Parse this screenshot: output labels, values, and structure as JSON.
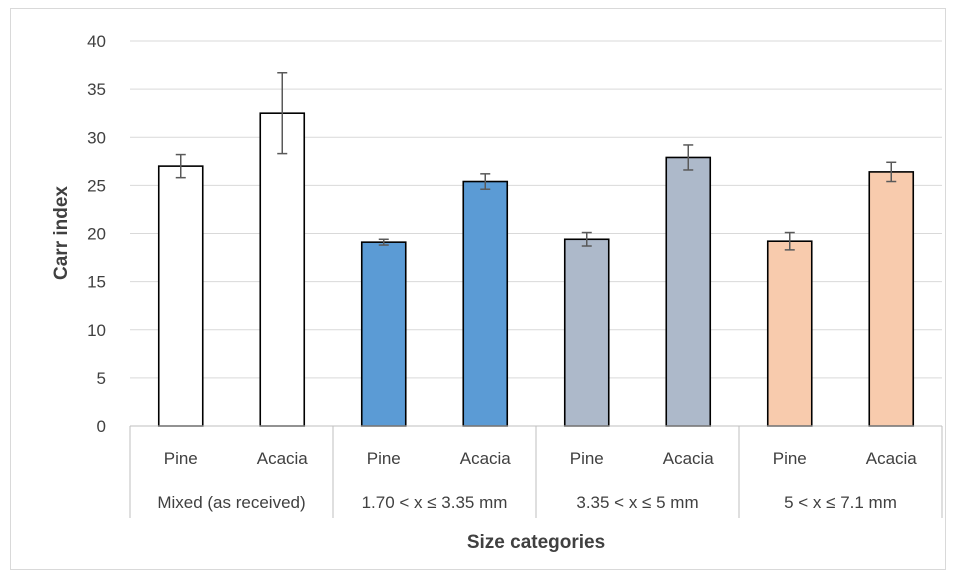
{
  "chart_data": {
    "type": "bar",
    "title": "",
    "xlabel": "Size categories",
    "ylabel": "Carr index",
    "ylim": [
      0,
      40
    ],
    "yticks": [
      0,
      5,
      10,
      15,
      20,
      25,
      30,
      35,
      40
    ],
    "grid": true,
    "legend": "none",
    "groups": [
      {
        "label": "Mixed (as received)",
        "bars": [
          {
            "label": "Pine",
            "value": 27.0,
            "error": 1.2,
            "fill": "#ffffff"
          },
          {
            "label": "Acacia",
            "value": 32.5,
            "error": 4.2,
            "fill": "#ffffff"
          }
        ]
      },
      {
        "label": "1.70 < x ≤ 3.35 mm",
        "bars": [
          {
            "label": "Pine",
            "value": 19.1,
            "error": 0.3,
            "fill": "#5b9bd5"
          },
          {
            "label": "Acacia",
            "value": 25.4,
            "error": 0.8,
            "fill": "#5b9bd5"
          }
        ]
      },
      {
        "label": "3.35 < x ≤ 5 mm",
        "bars": [
          {
            "label": "Pine",
            "value": 19.4,
            "error": 0.7,
            "fill": "#adb9ca"
          },
          {
            "label": "Acacia",
            "value": 27.9,
            "error": 1.3,
            "fill": "#adb9ca"
          }
        ]
      },
      {
        "label": "5 < x ≤ 7.1 mm",
        "bars": [
          {
            "label": "Pine",
            "value": 19.2,
            "error": 0.9,
            "fill": "#f8cbad"
          },
          {
            "label": "Acacia",
            "value": 26.4,
            "error": 1.0,
            "fill": "#f8cbad"
          }
        ]
      }
    ]
  }
}
